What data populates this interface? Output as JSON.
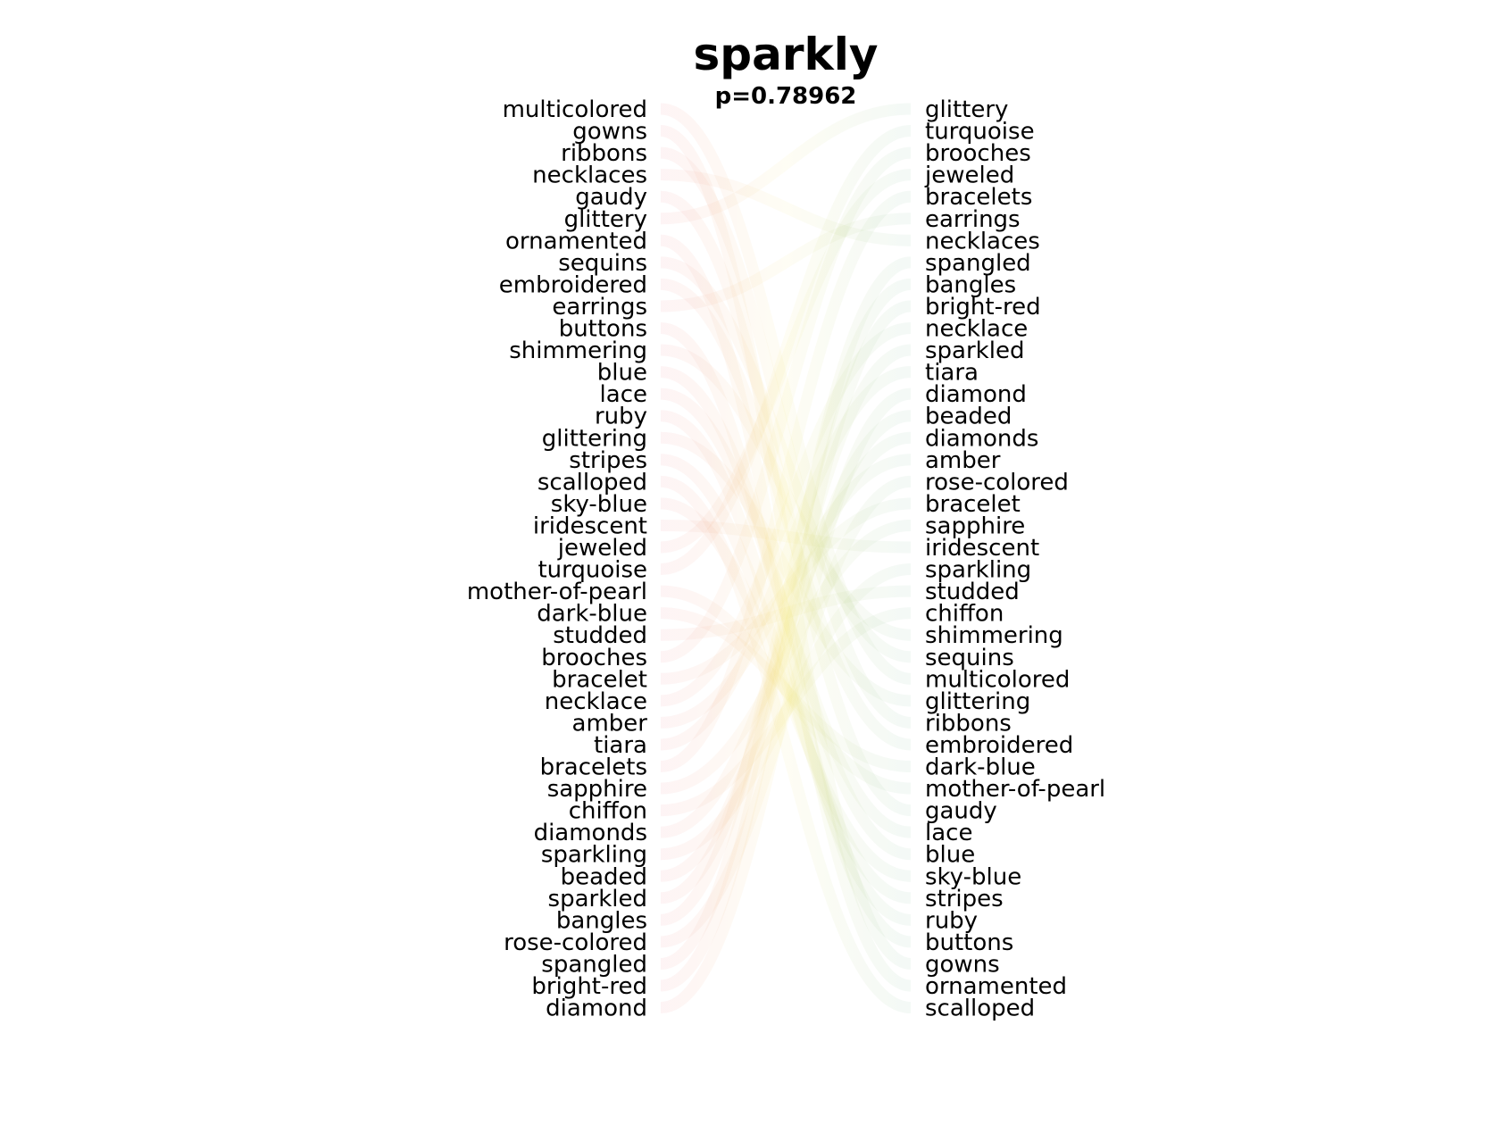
{
  "chart_data": {
    "type": "slope",
    "title": "sparkly",
    "subtitle": "p=0.78962",
    "left_labels": [
      "multicolored",
      "gowns",
      "ribbons",
      "necklaces",
      "gaudy",
      "glittery",
      "ornamented",
      "sequins",
      "embroidered",
      "earrings",
      "buttons",
      "shimmering",
      "blue",
      "lace",
      "ruby",
      "glittering",
      "stripes",
      "scalloped",
      "sky-blue",
      "iridescent",
      "jeweled",
      "turquoise",
      "mother-of-pearl",
      "dark-blue",
      "studded",
      "brooches",
      "bracelet",
      "necklace",
      "amber",
      "tiara",
      "bracelets",
      "sapphire",
      "chiffon",
      "diamonds",
      "sparkling",
      "beaded",
      "sparkled",
      "bangles",
      "rose-colored",
      "spangled",
      "bright-red",
      "diamond"
    ],
    "right_labels": [
      "glittery",
      "turquoise",
      "brooches",
      "jeweled",
      "bracelets",
      "earrings",
      "necklaces",
      "spangled",
      "bangles",
      "bright-red",
      "necklace",
      "sparkled",
      "tiara",
      "diamond",
      "beaded",
      "diamonds",
      "amber",
      "rose-colored",
      "bracelet",
      "sapphire",
      "iridescent",
      "sparkling",
      "studded",
      "chiffon",
      "shimmering",
      "sequins",
      "multicolored",
      "glittering",
      "ribbons",
      "embroidered",
      "dark-blue",
      "mother-of-pearl",
      "gaudy",
      "lace",
      "blue",
      "sky-blue",
      "stripes",
      "ruby",
      "buttons",
      "gowns",
      "ornamented",
      "scalloped"
    ],
    "left_color": "#e8636d",
    "right_color": "#5aa87a",
    "mid_color": "#f0e060"
  }
}
